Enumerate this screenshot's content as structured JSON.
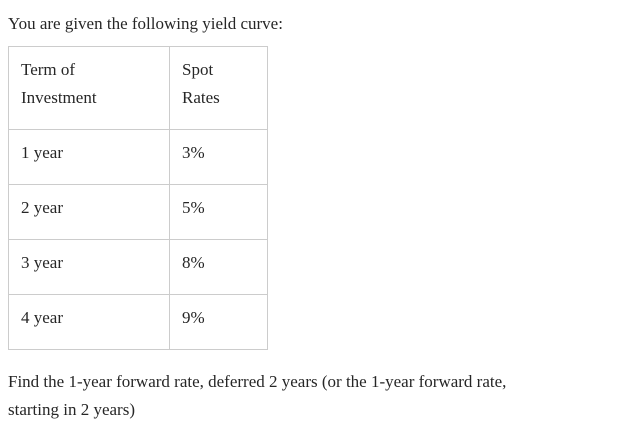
{
  "intro": "You are given the following yield curve:",
  "table": {
    "headers": {
      "term": "Term of\nInvestment",
      "rate": "Spot\nRates"
    },
    "rows": [
      {
        "term": "1 year",
        "rate": "3%"
      },
      {
        "term": "2 year",
        "rate": "5%"
      },
      {
        "term": "3 year",
        "rate": "8%"
      },
      {
        "term": "4 year",
        "rate": "9%"
      }
    ]
  },
  "question": "Find the 1-year forward rate, deferred 2 years (or the 1-year forward rate,\nstarting in 2 years)",
  "colors": {
    "text": "#262626",
    "table_border": "#cccccc",
    "background": "#ffffff"
  }
}
